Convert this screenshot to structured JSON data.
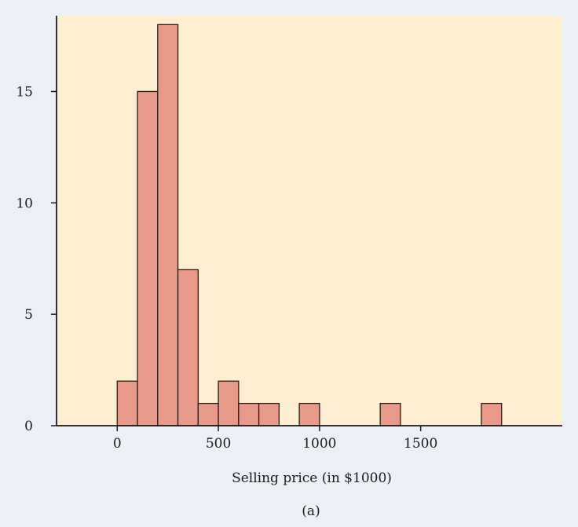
{
  "chart_data": {
    "type": "bar",
    "subtype": "histogram",
    "bin_width": 100,
    "bins": [
      {
        "start": 0,
        "end": 100,
        "count": 2
      },
      {
        "start": 100,
        "end": 200,
        "count": 15
      },
      {
        "start": 200,
        "end": 300,
        "count": 18
      },
      {
        "start": 300,
        "end": 400,
        "count": 7
      },
      {
        "start": 400,
        "end": 500,
        "count": 1
      },
      {
        "start": 500,
        "end": 600,
        "count": 2
      },
      {
        "start": 600,
        "end": 700,
        "count": 1
      },
      {
        "start": 700,
        "end": 800,
        "count": 1
      },
      {
        "start": 900,
        "end": 1000,
        "count": 1
      },
      {
        "start": 1300,
        "end": 1400,
        "count": 1
      },
      {
        "start": 1800,
        "end": 1900,
        "count": 1
      }
    ],
    "xlabel": "Selling price (in $1000)",
    "ylabel": "",
    "title": "",
    "caption": "(a)",
    "xlim": [
      -300,
      2200
    ],
    "ylim": [
      0,
      18.4
    ],
    "xticks": [
      0,
      500,
      1000,
      1500
    ],
    "yticks": [
      0,
      5,
      10,
      15
    ],
    "grid": false,
    "colors": {
      "bar_fill": "#e9998a",
      "bar_stroke": "#2a1a14",
      "plot_background": "#fdeed1",
      "page_background": "#edeff7",
      "axis": "#1a1a1a"
    }
  }
}
